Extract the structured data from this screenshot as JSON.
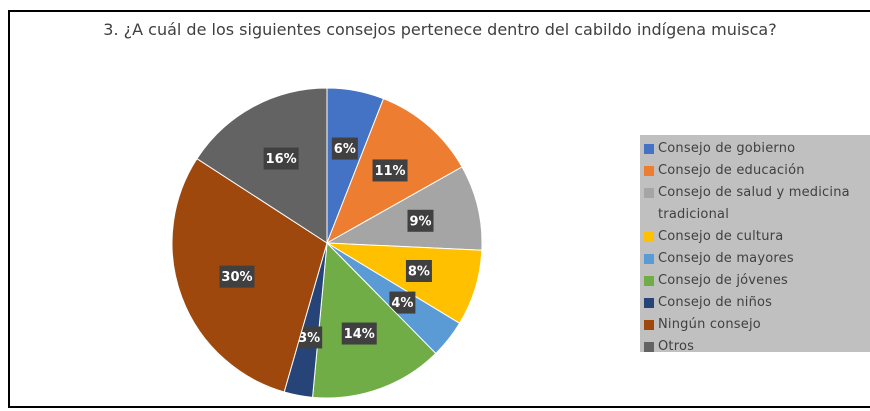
{
  "chart_data": {
    "type": "pie",
    "title": "3. ¿A cuál de los siguientes consejos pertenece dentro del cabildo indígena muisca?",
    "categories": [
      "Consejo de gobierno",
      "Consejo de educación",
      "Consejo de salud y medicina tradicional",
      "Consejo de cultura",
      "Consejo de mayores",
      "Consejo de jóvenes",
      "Consejo de niños",
      "Ningún consejo",
      "Otros"
    ],
    "values": [
      6,
      11,
      9,
      8,
      4,
      14,
      3,
      30,
      16
    ],
    "value_labels": [
      "6%",
      "11%",
      "9%",
      "8%",
      "4%",
      "14%",
      "3%",
      "30%",
      "16%"
    ],
    "colors": [
      "#4472c4",
      "#ed7d31",
      "#a5a5a5",
      "#ffc000",
      "#5b9bd5",
      "#70ad47",
      "#264478",
      "#9e480e",
      "#636363"
    ],
    "legend": "right"
  }
}
